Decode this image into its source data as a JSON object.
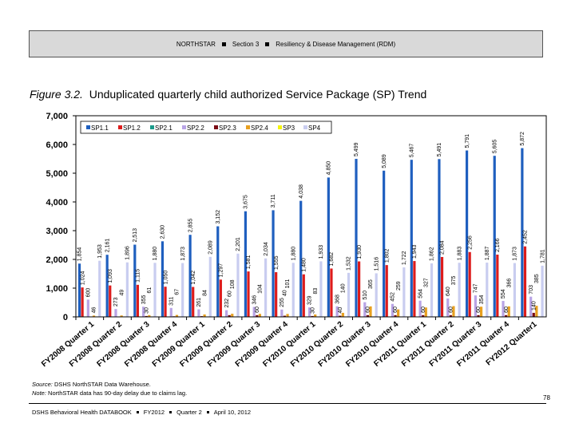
{
  "header": {
    "org": "NORTHSTAR",
    "section": "Section 3",
    "topic": "Resiliency & Disease Management (RDM)"
  },
  "figure": {
    "label": "Figure 3.2.",
    "title": "Unduplicated quarterly child authorized Service Package (SP) Trend"
  },
  "source": {
    "source_label": "Source:",
    "source_text": "DSHS NorthSTAR Data Warehouse.",
    "note_label": "Note:",
    "note_text": "NorthSTAR data has 90-day delay due to claims lag."
  },
  "page_number": "78",
  "footer": {
    "book": "DSHS Behavioral Health DATABOOK",
    "fy": "FY2012",
    "quarter": "Quarter 2",
    "date": "April 10, 2012"
  },
  "chart_data": {
    "type": "bar",
    "title": "",
    "xlabel": "",
    "ylabel": "",
    "ylim": [
      0,
      7000
    ],
    "yticks": [
      "0",
      "1,000",
      "2,000",
      "3,000",
      "4,000",
      "5,000",
      "6,000",
      "7,000"
    ],
    "grid": false,
    "legend": "top-left",
    "categories": [
      "FY2008 Quarter 1",
      "FY2008 Quarter 2",
      "FY2008 Quarter 3",
      "FY2008 Quarter 4",
      "FY2009 Quarter 1",
      "FY2009 Quarter 2",
      "FY2009 Quarter 3",
      "FY2009 Quarter 4",
      "FY2010 Quarter 1",
      "FY2010 Quarter 2",
      "FY2010 Quarter 3",
      "FY2010 Quarter 4",
      "FY2011 Quarter 1",
      "FY2011 Quarter 2",
      "FY2011 Quarter 3",
      "FY2011 Quarter 4",
      "FY2012 Quarter1"
    ],
    "series": [
      {
        "name": "SP1.1",
        "color": "#1f5fbf",
        "values": [
          1854,
          2161,
          2513,
          2630,
          2855,
          3152,
          3675,
          3711,
          4038,
          4850,
          5499,
          5089,
          5467,
          5491,
          5791,
          5605,
          5872
        ]
      },
      {
        "name": "SP1.2",
        "color": "#dd1c1c",
        "values": [
          1024,
          1093,
          1115,
          1050,
          1042,
          1297,
          1581,
          1555,
          1480,
          1682,
          1930,
          1802,
          1943,
          2084,
          2256,
          2166,
          2452
        ]
      },
      {
        "name": "SP2.1",
        "color": "#1a9a8a",
        "values": [
          1,
          1,
          1,
          1,
          1,
          1,
          1,
          1,
          1,
          1,
          1,
          1,
          1,
          1,
          1,
          1,
          1
        ]
      },
      {
        "name": "SP2.2",
        "color": "#b9a4e6",
        "values": [
          600,
          273,
          355,
          311,
          261,
          232,
          346,
          255,
          329,
          368,
          510,
          452,
          564,
          640,
          747,
          554,
          703
        ]
      },
      {
        "name": "SP2.3",
        "color": "#7a0c14",
        "values": [
          5,
          10,
          30,
          20,
          25,
          60,
          60,
          40,
          30,
          40,
          60,
          60,
          60,
          60,
          60,
          60,
          140
        ]
      },
      {
        "name": "SP2.4",
        "color": "#e8a020",
        "values": [
          46,
          49,
          61,
          67,
          84,
          108,
          104,
          101,
          83,
          140,
          365,
          259,
          327,
          375,
          354,
          366,
          385
        ]
      },
      {
        "name": "SP3",
        "color": "#f5f50a",
        "values": [
          0,
          0,
          0,
          0,
          0,
          0,
          0,
          0,
          0,
          0,
          0,
          0,
          0,
          0,
          0,
          0,
          0
        ]
      },
      {
        "name": "SP4",
        "color": "#c9cdf0",
        "values": [
          1953,
          1896,
          1880,
          1873,
          2089,
          2201,
          2034,
          1880,
          1933,
          1532,
          1516,
          1722,
          1862,
          1883,
          1887,
          1873,
          1781
        ]
      }
    ]
  }
}
